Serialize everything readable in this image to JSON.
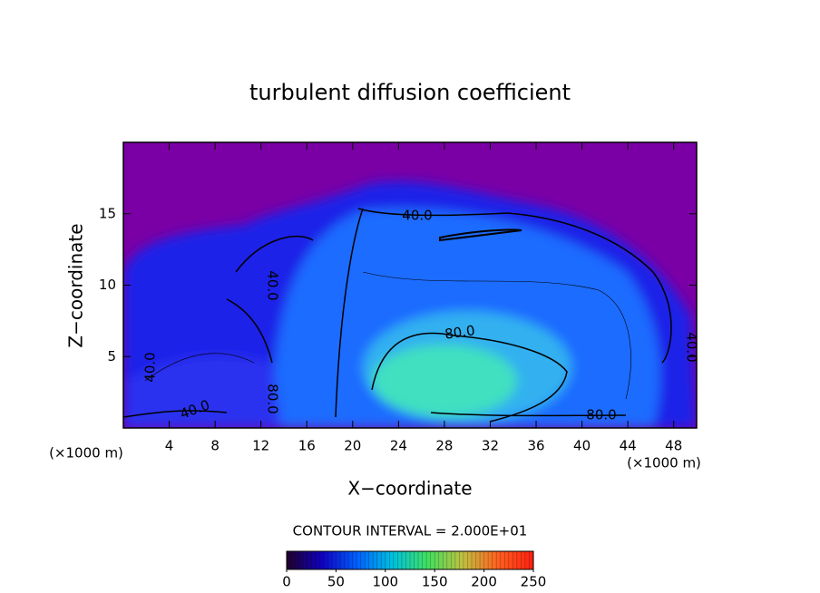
{
  "chart_data": {
    "type": "contour",
    "title": "turbulent diffusion coefficient",
    "x_label": "X−coordinate",
    "y_label": "Z−coordinate",
    "x_unit_left": "(×1000 m)",
    "x_unit_right": "(×1000 m)",
    "xlim": [
      0,
      50
    ],
    "xticks": [
      4,
      8,
      12,
      16,
      20,
      24,
      28,
      32,
      36,
      40,
      44,
      48
    ],
    "ylim": [
      0,
      20
    ],
    "yticks": [
      5,
      10,
      15
    ],
    "contour_labels": [
      "40.0",
      "40.0",
      "80.0",
      "80.0",
      "40.0",
      "80.0",
      "40.0",
      "40.0"
    ],
    "contour_interval": "CONTOUR INTERVAL = 2.000E+01",
    "colorbar": {
      "lim": [
        0,
        250
      ],
      "ticks": [
        0,
        50,
        100,
        150,
        200,
        250
      ],
      "colors": [
        "#20002a",
        "#1000c0",
        "#0060ff",
        "#00c0e0",
        "#40e060",
        "#c0c040",
        "#ff6020",
        "#ff2010"
      ]
    }
  }
}
